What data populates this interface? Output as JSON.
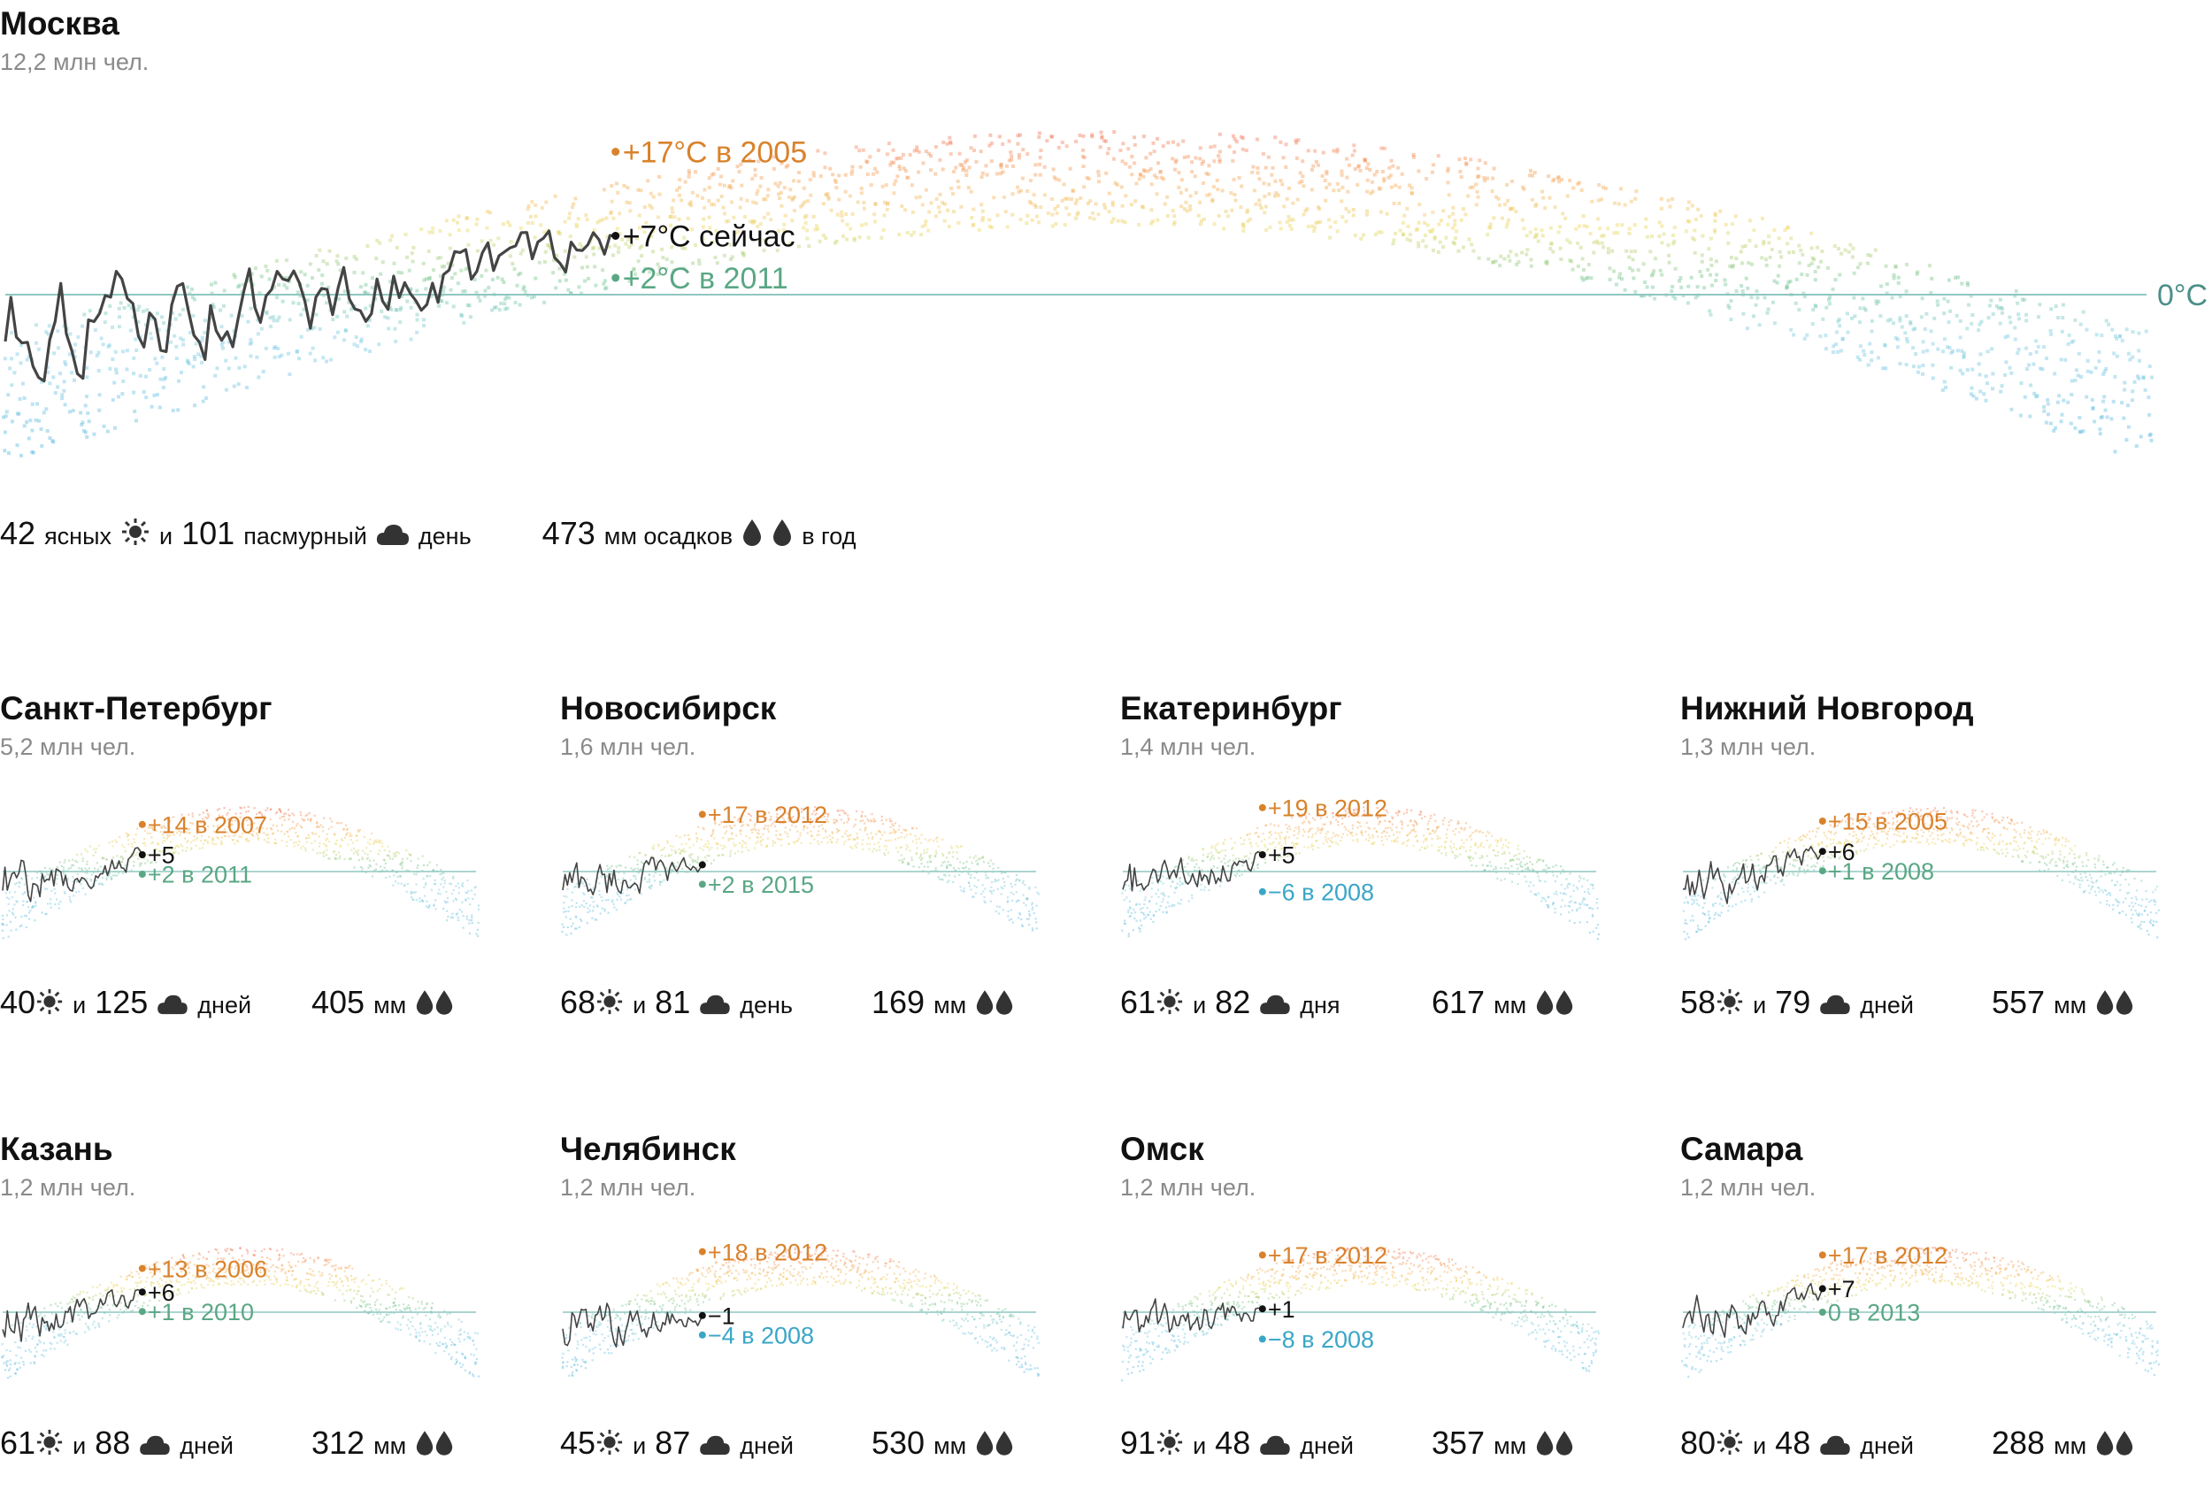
{
  "colors": {
    "hot": "#d9822b",
    "now": "#111111",
    "cold_green": "#5aa785",
    "cold_blue": "#3aa6c7",
    "baseline": "#8fc7c0",
    "line": "#444444",
    "muted": "#8a8a8a"
  },
  "icons": {
    "sun": "sun-icon",
    "cloud": "cloud-icon",
    "drop": "raindrop-icon"
  },
  "main": {
    "name": "Москва",
    "population": "12,2 млн чел.",
    "zero_label": "0°C",
    "clear_days": "42",
    "clear_word": "ясных",
    "and_word": "и",
    "cloudy_days": "101",
    "cloudy_word": "пасмурный",
    "day_word": "день",
    "precip": "473",
    "precip_word": "мм осадков",
    "per_year": "в год",
    "chart_data": {
      "type": "scatter",
      "title": "Москва",
      "ylabel": "°C",
      "baseline_label": "0°C",
      "max_note": {
        "value": 17,
        "label": "+17°C в 2005"
      },
      "now_note": {
        "value": 7,
        "label": "+7°C сейчас"
      },
      "min_note": {
        "value": 2,
        "label": "+2°C в 2011"
      },
      "ylim": [
        -20,
        30
      ]
    }
  },
  "cities": [
    {
      "name": "Санкт-Петербург",
      "population": "5,2 млн чел.",
      "clear": "40",
      "and": "и",
      "cloudy": "125",
      "days_word": "дней",
      "precip": "405",
      "mm": "мм",
      "chart_data": {
        "type": "scatter",
        "max_note": {
          "value": 14,
          "label": "+14 в 2007"
        },
        "now_note": {
          "value": 5,
          "label": "+5"
        },
        "min_note": {
          "value": 2,
          "label": "+2 в 2011",
          "tone": "green"
        }
      }
    },
    {
      "name": "Новосибирск",
      "population": "1,6 млн чел.",
      "clear": "68",
      "and": "и",
      "cloudy": "81",
      "days_word": "день",
      "precip": "169",
      "mm": "мм",
      "chart_data": {
        "type": "scatter",
        "max_note": {
          "value": 17,
          "label": "+17 в 2012"
        },
        "now_note": {
          "value": 2,
          "label": ""
        },
        "min_note": {
          "value": 2,
          "label": "+2 в 2015",
          "tone": "green"
        }
      }
    },
    {
      "name": "Екатеринбург",
      "population": "1,4 млн чел.",
      "clear": "61",
      "and": "и",
      "cloudy": "82",
      "days_word": "дня",
      "precip": "617",
      "mm": "мм",
      "chart_data": {
        "type": "scatter",
        "max_note": {
          "value": 19,
          "label": "+19 в 2012"
        },
        "now_note": {
          "value": 5,
          "label": "+5"
        },
        "min_note": {
          "value": -6,
          "label": "−6 в 2008",
          "tone": "blue"
        }
      }
    },
    {
      "name": "Нижний Новгород",
      "population": "1,3 млн чел.",
      "clear": "58",
      "and": "и",
      "cloudy": "79",
      "days_word": "дней",
      "precip": "557",
      "mm": "мм",
      "chart_data": {
        "type": "scatter",
        "max_note": {
          "value": 15,
          "label": "+15 в 2005"
        },
        "now_note": {
          "value": 6,
          "label": "+6"
        },
        "min_note": {
          "value": 1,
          "label": "+1 в 2008",
          "tone": "green"
        }
      }
    },
    {
      "name": "Казань",
      "population": "1,2 млн чел.",
      "clear": "61",
      "and": "и",
      "cloudy": "88",
      "days_word": "дней",
      "precip": "312",
      "mm": "мм",
      "chart_data": {
        "type": "scatter",
        "max_note": {
          "value": 13,
          "label": "+13 в 2006"
        },
        "now_note": {
          "value": 6,
          "label": "+6"
        },
        "min_note": {
          "value": 1,
          "label": "+1 в 2010",
          "tone": "green"
        }
      }
    },
    {
      "name": "Челябинск",
      "population": "1,2 млн чел.",
      "clear": "45",
      "and": "и",
      "cloudy": "87",
      "days_word": "дней",
      "precip": "530",
      "mm": "мм",
      "chart_data": {
        "type": "scatter",
        "max_note": {
          "value": 18,
          "label": "+18 в 2012"
        },
        "now_note": {
          "value": -1,
          "label": "−1"
        },
        "min_note": {
          "value": -4,
          "label": "−4 в 2008",
          "tone": "blue"
        }
      }
    },
    {
      "name": "Омск",
      "population": "1,2 млн чел.",
      "clear": "91",
      "and": "и",
      "cloudy": "48",
      "days_word": "дней",
      "precip": "357",
      "mm": "мм",
      "chart_data": {
        "type": "scatter",
        "max_note": {
          "value": 17,
          "label": "+17 в 2012"
        },
        "now_note": {
          "value": 1,
          "label": "+1"
        },
        "min_note": {
          "value": -8,
          "label": "−8 в 2008",
          "tone": "blue"
        }
      }
    },
    {
      "name": "Самара",
      "population": "1,2 млн чел.",
      "clear": "80",
      "and": "и",
      "cloudy": "48",
      "days_word": "дней",
      "precip": "288",
      "mm": "мм",
      "chart_data": {
        "type": "scatter",
        "max_note": {
          "value": 17,
          "label": "+17 в 2012"
        },
        "now_note": {
          "value": 7,
          "label": "+7"
        },
        "min_note": {
          "value": 0,
          "label": "0 в 2013",
          "tone": "green"
        }
      }
    }
  ]
}
